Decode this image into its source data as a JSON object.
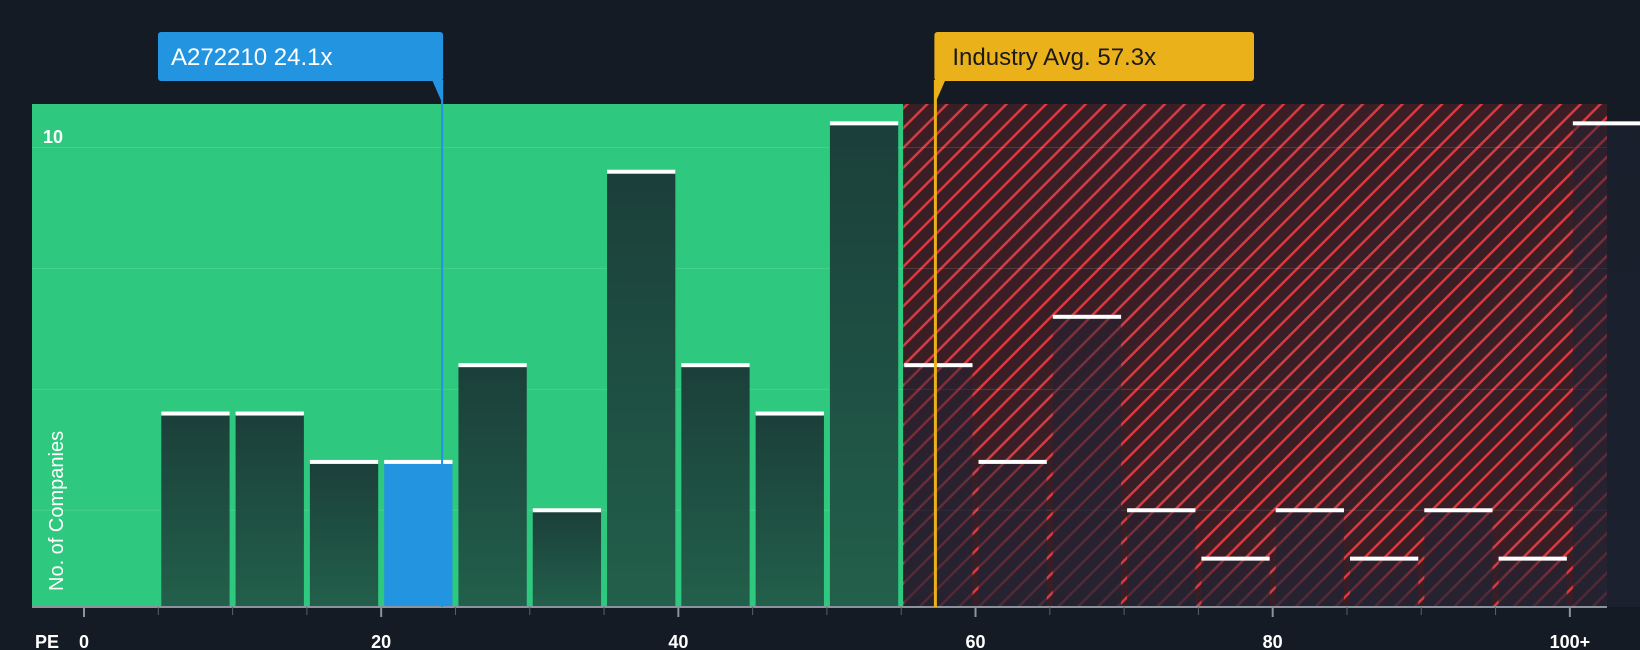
{
  "chart_data": {
    "type": "bar",
    "xlabel": "PE",
    "ylabel": "No. of Companies",
    "x_ticks": [
      "0",
      "20",
      "40",
      "60",
      "80",
      "100+"
    ],
    "x_tick_values": [
      0,
      20,
      40,
      60,
      80,
      100
    ],
    "xlim": [
      -3.5,
      102.5
    ],
    "y_ticks": [
      "10"
    ],
    "y_tick_values": [
      10
    ],
    "ylim": [
      0,
      10.4
    ],
    "bin_width": 5,
    "bins": [
      {
        "start": 5,
        "count": 4
      },
      {
        "start": 10,
        "count": 4
      },
      {
        "start": 15,
        "count": 3
      },
      {
        "start": 20,
        "count": 3,
        "highlight": true
      },
      {
        "start": 25,
        "count": 5
      },
      {
        "start": 30,
        "count": 2
      },
      {
        "start": 35,
        "count": 9
      },
      {
        "start": 40,
        "count": 5
      },
      {
        "start": 45,
        "count": 4
      },
      {
        "start": 50,
        "count": 10
      },
      {
        "start": 55,
        "count": 5
      },
      {
        "start": 60,
        "count": 3
      },
      {
        "start": 65,
        "count": 6
      },
      {
        "start": 70,
        "count": 2
      },
      {
        "start": 75,
        "count": 1
      },
      {
        "start": 80,
        "count": 2
      },
      {
        "start": 85,
        "count": 1
      },
      {
        "start": 90,
        "count": 2
      },
      {
        "start": 95,
        "count": 1
      },
      {
        "start": 100,
        "count": 10
      }
    ],
    "company": {
      "label": "A272210 24.1x",
      "value": 24.1
    },
    "industry_avg": {
      "label": "Industry Avg. 57.3x",
      "value": 57.3
    },
    "fair_zone_end": 55,
    "colors": {
      "background": "#151b24",
      "fair_zone": "#2ec97e",
      "bar": "#1d4a40",
      "highlight_bar": "#2394e0",
      "company_label": "#2394e0",
      "industry_label": "#eab11a",
      "hatch": "#d83a3f"
    }
  }
}
